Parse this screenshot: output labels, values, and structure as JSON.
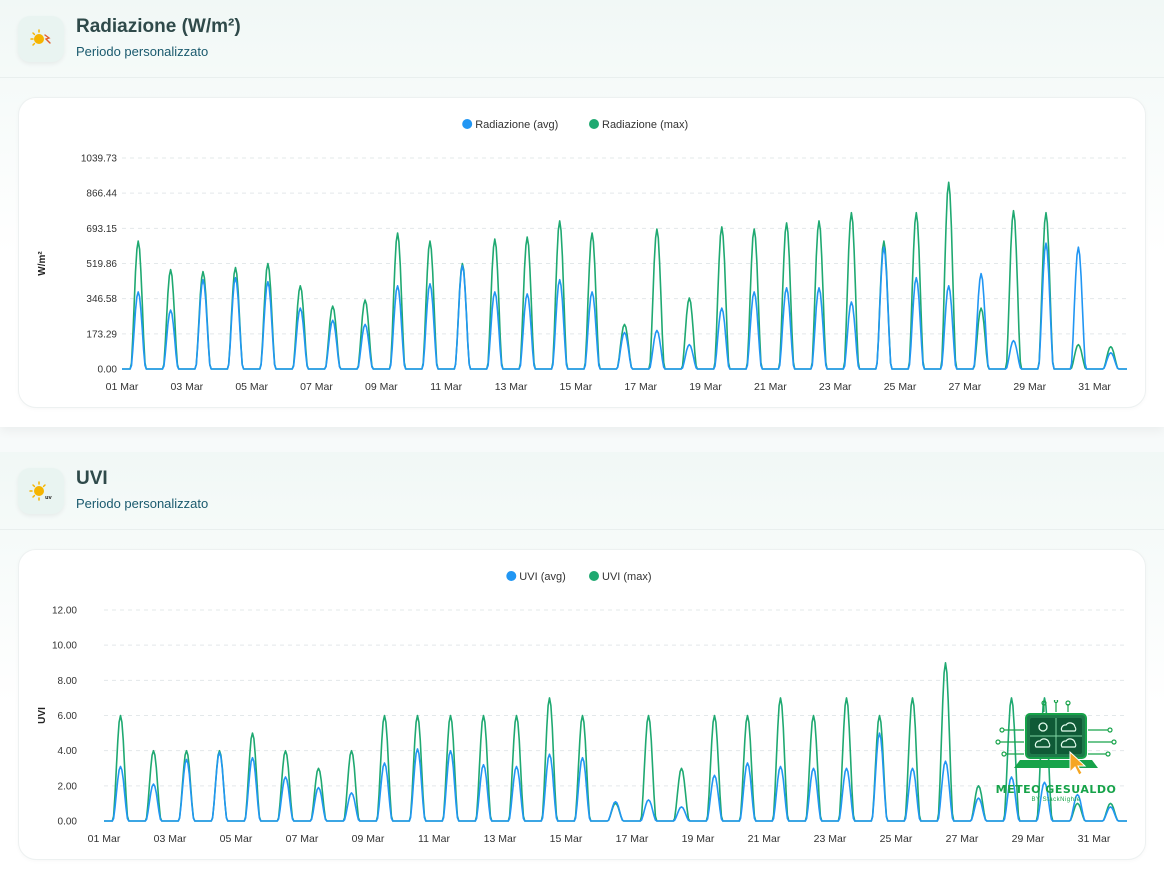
{
  "panels": [
    {
      "title": "Radiazione (W/m²)",
      "subtitle": "Periodo personalizzato",
      "icon": "sun-radiation-icon"
    },
    {
      "title": "UVI",
      "subtitle": "Periodo personalizzato",
      "icon": "sun-uv-icon"
    }
  ],
  "logo": {
    "title": "METEO GESUALDO",
    "subtitle": "BY StackNighte"
  },
  "colors": {
    "avg": "#2196F3",
    "max": "#1FA971"
  },
  "chart_data": [
    {
      "type": "line",
      "ylabel": "W/m²",
      "ylim": [
        0,
        1039.73
      ],
      "yticks": [
        "0.00",
        "173.29",
        "346.58",
        "519.86",
        "693.15",
        "866.44",
        "1039.73"
      ],
      "xlim": [
        1,
        32
      ],
      "xticks": [
        {
          "day": 1,
          "label": "01 Mar"
        },
        {
          "day": 3,
          "label": "03 Mar"
        },
        {
          "day": 5,
          "label": "05 Mar"
        },
        {
          "day": 7,
          "label": "07 Mar"
        },
        {
          "day": 9,
          "label": "09 Mar"
        },
        {
          "day": 11,
          "label": "11 Mar"
        },
        {
          "day": 13,
          "label": "13 Mar"
        },
        {
          "day": 15,
          "label": "15 Mar"
        },
        {
          "day": 17,
          "label": "17 Mar"
        },
        {
          "day": 19,
          "label": "19 Mar"
        },
        {
          "day": 21,
          "label": "21 Mar"
        },
        {
          "day": 23,
          "label": "23 Mar"
        },
        {
          "day": 25,
          "label": "25 Mar"
        },
        {
          "day": 27,
          "label": "27 Mar"
        },
        {
          "day": 29,
          "label": "29 Mar"
        },
        {
          "day": 31,
          "label": "31 Mar"
        }
      ],
      "grid": true,
      "legend": "top-center",
      "series": [
        {
          "name": "Radiazione (avg)",
          "daily_peaks": [
            380,
            290,
            440,
            450,
            430,
            300,
            240,
            220,
            410,
            420,
            510,
            380,
            370,
            440,
            380,
            180,
            190,
            120,
            300,
            380,
            400,
            400,
            330,
            600,
            450,
            410,
            470,
            140,
            620,
            600,
            80
          ]
        },
        {
          "name": "Radiazione (max)",
          "daily_peaks": [
            630,
            490,
            480,
            500,
            520,
            410,
            310,
            340,
            670,
            630,
            520,
            640,
            650,
            730,
            670,
            220,
            690,
            350,
            700,
            690,
            720,
            730,
            770,
            630,
            770,
            920,
            300,
            780,
            770,
            120,
            110
          ]
        }
      ]
    },
    {
      "type": "line",
      "ylabel": "UVI",
      "ylim": [
        0,
        12
      ],
      "yticks": [
        "0.00",
        "2.00",
        "4.00",
        "6.00",
        "8.00",
        "10.00",
        "12.00"
      ],
      "xlim": [
        1,
        32
      ],
      "xticks": [
        {
          "day": 1,
          "label": "01 Mar"
        },
        {
          "day": 3,
          "label": "03 Mar"
        },
        {
          "day": 5,
          "label": "05 Mar"
        },
        {
          "day": 7,
          "label": "07 Mar"
        },
        {
          "day": 9,
          "label": "09 Mar"
        },
        {
          "day": 11,
          "label": "11 Mar"
        },
        {
          "day": 13,
          "label": "13 Mar"
        },
        {
          "day": 15,
          "label": "15 Mar"
        },
        {
          "day": 17,
          "label": "17 Mar"
        },
        {
          "day": 19,
          "label": "19 Mar"
        },
        {
          "day": 21,
          "label": "21 Mar"
        },
        {
          "day": 23,
          "label": "23 Mar"
        },
        {
          "day": 25,
          "label": "25 Mar"
        },
        {
          "day": 27,
          "label": "27 Mar"
        },
        {
          "day": 29,
          "label": "29 Mar"
        },
        {
          "day": 31,
          "label": "31 Mar"
        }
      ],
      "grid": true,
      "legend": "top-center",
      "series": [
        {
          "name": "UVI (avg)",
          "daily_peaks": [
            3.1,
            2.1,
            3.5,
            3.9,
            3.6,
            2.5,
            1.9,
            1.6,
            3.3,
            4.1,
            4.0,
            3.2,
            3.1,
            3.8,
            3.6,
            1.1,
            1.2,
            0.8,
            2.6,
            3.3,
            3.1,
            3.0,
            3.0,
            5.0,
            3.0,
            3.4,
            1.3,
            2.5,
            2.2,
            1.5,
            0.8
          ]
        },
        {
          "name": "UVI (max)",
          "daily_peaks": [
            6.0,
            4.0,
            4.0,
            4.0,
            5.0,
            4.0,
            3.0,
            4.0,
            6.0,
            6.0,
            6.0,
            6.0,
            6.0,
            7.0,
            6.0,
            1.0,
            6.0,
            3.0,
            6.0,
            6.0,
            7.0,
            6.0,
            7.0,
            6.0,
            7.0,
            9.0,
            2.0,
            7.0,
            7.0,
            1.0,
            1.0
          ]
        }
      ]
    }
  ]
}
